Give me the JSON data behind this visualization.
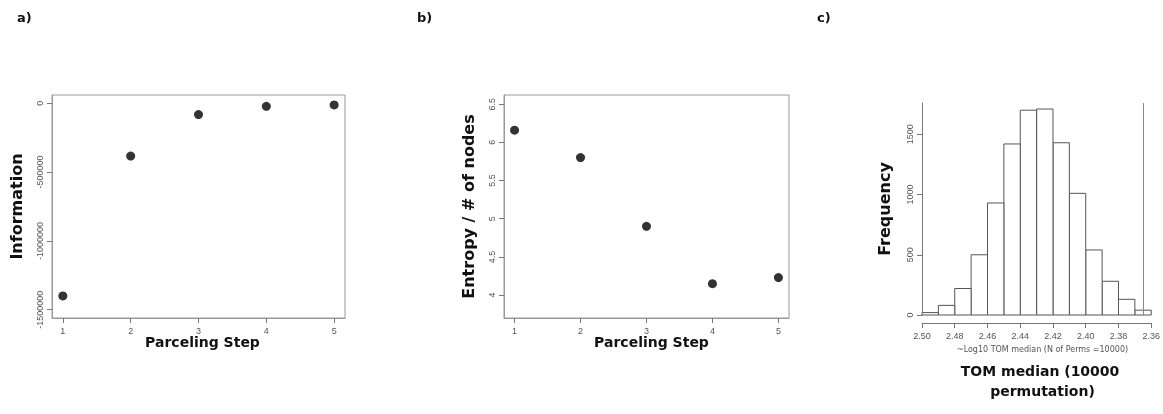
{
  "chart_data": [
    {
      "type": "scatter",
      "title": "a)",
      "xlabel": "Parceling Step",
      "ylabel": "Information",
      "x": [
        1,
        2,
        3,
        4,
        5
      ],
      "values": [
        -1400000,
        -384000,
        -82000,
        -22000,
        -12000
      ],
      "color": "#000000",
      "marker": "circle",
      "xlim": [
        0.84,
        5.16
      ],
      "xticks": [
        1,
        2,
        3,
        4,
        5
      ],
      "ylim": [
        -1560000,
        60000
      ],
      "yticks": [
        -1500000,
        -1000000,
        -500000,
        0
      ],
      "grid": false
    },
    {
      "type": "scatter",
      "title": "b)",
      "xlabel": "Parceling Step",
      "ylabel": "Entropy / # of nodes",
      "x": [
        1,
        2,
        3,
        4,
        5
      ],
      "values": [
        6.16,
        5.8,
        4.9,
        4.15,
        4.23
      ],
      "color": "#000000",
      "marker": "circle",
      "xlim": [
        0.84,
        5.16
      ],
      "xticks": [
        1,
        2,
        3,
        4,
        5
      ],
      "ylim": [
        3.7,
        6.62
      ],
      "yticks": [
        4.0,
        4.5,
        5.0,
        5.5,
        6.0,
        6.5
      ],
      "grid": false
    },
    {
      "type": "histogram",
      "title": "c)",
      "xlabel": "~Log10 TOM median (N of Perms =10000)",
      "ylabel": "Frequency",
      "bins": [
        2.36,
        2.37,
        2.38,
        2.39,
        2.4,
        2.41,
        2.42,
        2.43,
        2.44,
        2.45,
        2.46,
        2.47,
        2.48,
        2.49,
        2.5
      ],
      "values": [
        40,
        130,
        280,
        540,
        1010,
        1430,
        1710,
        1700,
        1420,
        930,
        500,
        220,
        80,
        20
      ],
      "color": "#ffffff",
      "xlim": [
        2.5,
        2.36
      ],
      "xticks": [
        {
          "value": 2.5,
          "label": "2.50"
        },
        {
          "value": 2.48,
          "label": "2.48"
        },
        {
          "value": 2.46,
          "label": "2.46"
        },
        {
          "value": 2.44,
          "label": "2.44"
        },
        {
          "value": 2.42,
          "label": "2.42"
        },
        {
          "value": 2.4,
          "label": "2.40"
        },
        {
          "value": 2.38,
          "label": "2.38"
        },
        {
          "value": 2.36,
          "label": "2.36"
        }
      ],
      "ylim": [
        0,
        1760
      ],
      "yticks": [
        0,
        500,
        1000,
        1500
      ],
      "ref_lines": [
        {
          "axis": "x",
          "value": 2.365
        }
      ],
      "annotations": [
        "TOM median (10000 permutation)"
      ],
      "grid": false
    }
  ]
}
